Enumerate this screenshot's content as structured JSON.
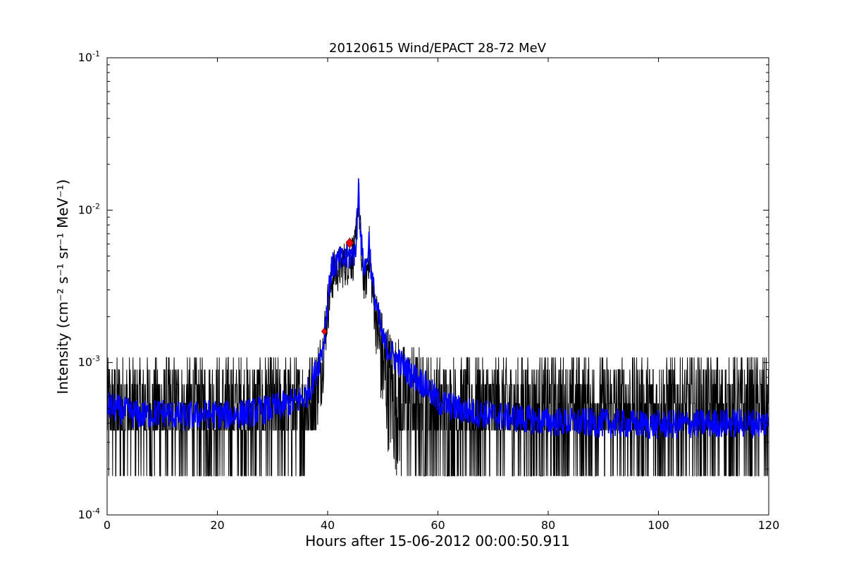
{
  "chart_data": {
    "type": "line",
    "title": "20120615 Wind/EPACT 28-72 MeV",
    "xlabel": "Hours after 15-06-2012 00:00:50.911",
    "ylabel": "Intensity (cm⁻² s⁻¹ sr⁻¹ MeV⁻¹)",
    "xlim": [
      0,
      120
    ],
    "ylim": [
      0.0001,
      0.1
    ],
    "yscale": "log",
    "grid": false,
    "xticks": [
      0,
      20,
      40,
      60,
      80,
      100,
      120
    ],
    "yticks": [
      {
        "value": 0.0001,
        "base": "10",
        "exp": "-4"
      },
      {
        "value": 0.001,
        "base": "10",
        "exp": "-3"
      },
      {
        "value": 0.01,
        "base": "10",
        "exp": "-2"
      },
      {
        "value": 0.1,
        "base": "10",
        "exp": "-1"
      }
    ],
    "series": [
      {
        "style": "raw",
        "color": "#000000",
        "levels": [
          0.00018,
          0.00036,
          0.00054,
          0.00072,
          0.0009,
          0.00108,
          0.00126
        ],
        "envelope": [
          {
            "x": 0,
            "lo": 0.00018,
            "hi": 0.0011
          },
          {
            "x": 36,
            "lo": 0.00018,
            "hi": 0.0011
          },
          {
            "x": 38,
            "lo": 0.00036,
            "hi": 0.0013
          },
          {
            "x": 39,
            "lo": 0.00054,
            "hi": 0.0018
          },
          {
            "x": 40,
            "lo": 0.0015,
            "hi": 0.0035
          },
          {
            "x": 41,
            "lo": 0.0026,
            "hi": 0.0055
          },
          {
            "x": 42.5,
            "lo": 0.003,
            "hi": 0.006
          },
          {
            "x": 44,
            "lo": 0.0032,
            "hi": 0.007
          },
          {
            "x": 45,
            "lo": 0.0035,
            "hi": 0.0075
          },
          {
            "x": 45.6,
            "lo": 0.009,
            "hi": 0.019
          },
          {
            "x": 46.2,
            "lo": 0.0025,
            "hi": 0.006
          },
          {
            "x": 47,
            "lo": 0.0025,
            "hi": 0.0045
          },
          {
            "x": 47.5,
            "lo": 0.0035,
            "hi": 0.0085
          },
          {
            "x": 48.3,
            "lo": 0.0018,
            "hi": 0.0035
          },
          {
            "x": 50,
            "lo": 0.00036,
            "hi": 0.0022
          },
          {
            "x": 52,
            "lo": 0.00018,
            "hi": 0.0016
          },
          {
            "x": 56,
            "lo": 0.00018,
            "hi": 0.0013
          },
          {
            "x": 60,
            "lo": 0.00018,
            "hi": 0.0011
          },
          {
            "x": 120,
            "lo": 0.00018,
            "hi": 0.0011
          }
        ]
      },
      {
        "style": "smoothed",
        "color": "#0000ff",
        "x": [
          0,
          3,
          6,
          10,
          14,
          18,
          22,
          26,
          30,
          34,
          36,
          37,
          38,
          39,
          39.5,
          40,
          40.5,
          41,
          42,
          43,
          44,
          45,
          45.3,
          45.6,
          46,
          46.4,
          47,
          47.5,
          48,
          49,
          50,
          52,
          55,
          58,
          60,
          65,
          70,
          80,
          90,
          100,
          110,
          120
        ],
        "y": [
          0.00052,
          0.00048,
          0.00045,
          0.00047,
          0.00044,
          0.00046,
          0.00045,
          0.00047,
          0.0005,
          0.00055,
          0.0006,
          0.00072,
          0.0009,
          0.0012,
          0.0016,
          0.0025,
          0.0038,
          0.0043,
          0.0046,
          0.0047,
          0.005,
          0.0053,
          0.008,
          0.0145,
          0.007,
          0.0045,
          0.0042,
          0.0065,
          0.0035,
          0.0022,
          0.0014,
          0.0011,
          0.00085,
          0.0007,
          0.00055,
          0.00048,
          0.00045,
          0.00041,
          0.0004,
          0.00039,
          0.0004,
          0.0004
        ]
      }
    ],
    "markers": [
      {
        "x": 39.4,
        "y": 0.0016,
        "color": "#ff0000",
        "shape": "diamond"
      },
      {
        "x": 44.0,
        "y": 0.0061,
        "color": "#ff0000",
        "shape": "diamond"
      }
    ]
  }
}
